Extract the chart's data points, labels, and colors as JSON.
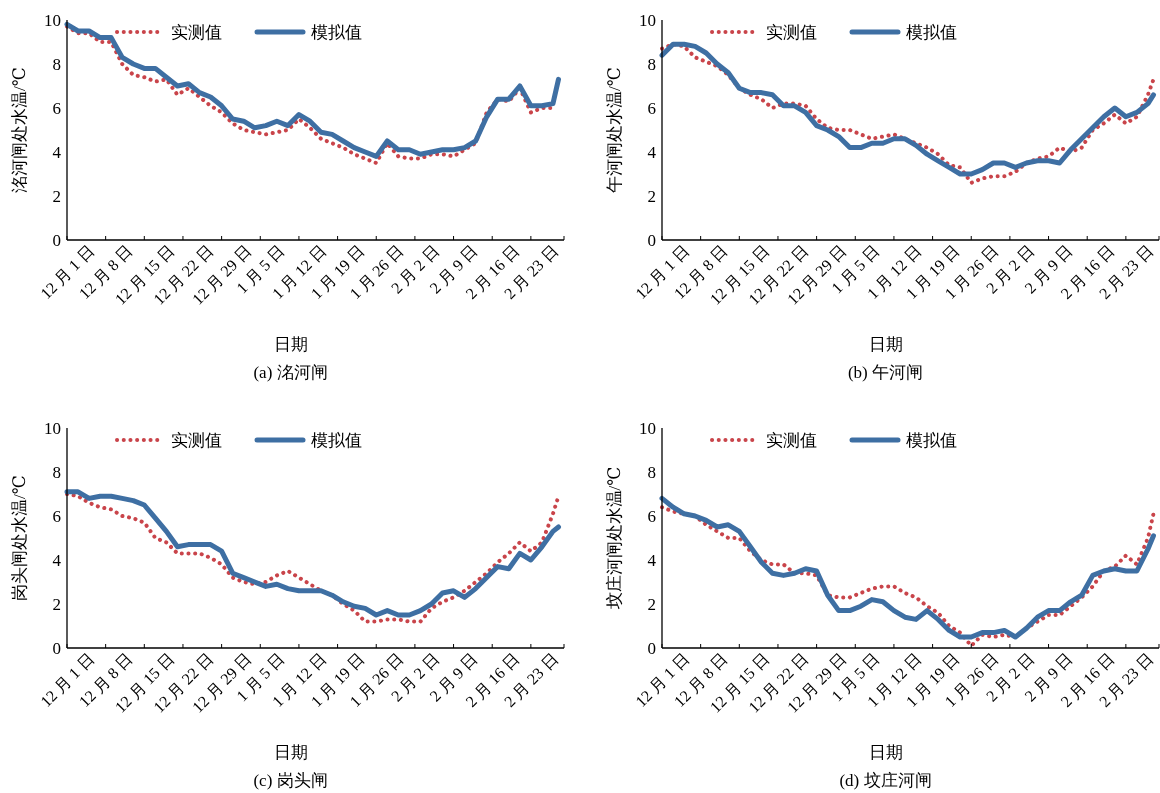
{
  "chart_data": [
    {
      "type": "line",
      "xlabel": "日期",
      "ylabel": "洺河闸处水温/℃",
      "annotations": [
        "(a) 洺河闸"
      ],
      "legend": "top left",
      "ylim": [
        0,
        10
      ],
      "yticks": [
        0,
        2,
        4,
        6,
        8,
        10
      ],
      "categories": [
        "12 月 1 日",
        null,
        null,
        null,
        null,
        null,
        null,
        "12 月 8 日",
        null,
        null,
        null,
        null,
        null,
        null,
        "12 月 15 日",
        null,
        null,
        null,
        null,
        null,
        null,
        "12 月 22 日",
        null,
        null,
        null,
        null,
        null,
        null,
        "12 月 29 日",
        null,
        null,
        null,
        null,
        null,
        null,
        "1 月 5 日",
        null,
        null,
        null,
        null,
        null,
        null,
        "1 月 12 日",
        null,
        null,
        null,
        null,
        null,
        null,
        "1 月 19 日",
        null,
        null,
        null,
        null,
        null,
        null,
        "1 月 26 日",
        null,
        null,
        null,
        null,
        null,
        null,
        "2 月 2 日",
        null,
        null,
        null,
        null,
        null,
        null,
        "2 月 9 日",
        null,
        null,
        null,
        null,
        null,
        null,
        "2 月 16 日",
        null,
        null,
        null,
        null,
        null,
        null,
        "2 月 23 日",
        null,
        null,
        null,
        null,
        null
      ],
      "series": [
        {
          "name": "实测值",
          "color": "#c9444a",
          "line_style": "dotted",
          "values": [
            9.7,
            null,
            9.4,
            null,
            9.4,
            null,
            9.0,
            null,
            9.0,
            null,
            8.0,
            null,
            7.5,
            null,
            7.4,
            null,
            7.2,
            null,
            7.3,
            null,
            6.6,
            null,
            6.9,
            null,
            6.5,
            null,
            6.1,
            null,
            5.8,
            null,
            5.3,
            null,
            5.0,
            null,
            4.9,
            null,
            4.8,
            null,
            4.9,
            null,
            5.0,
            null,
            5.5,
            null,
            5.1,
            null,
            4.6,
            null,
            4.4,
            null,
            4.2,
            null,
            3.9,
            null,
            3.7,
            null,
            3.5,
            null,
            4.4,
            null,
            3.8,
            null,
            3.7,
            null,
            3.7,
            null,
            3.9,
            null,
            3.9,
            null,
            3.8,
            null,
            4.1,
            null,
            4.4,
            null,
            5.8,
            null,
            6.4,
            null,
            6.3,
            null,
            6.9,
            null,
            5.8,
            null,
            6.0,
            null,
            6.0,
            null
          ]
        },
        {
          "name": "模拟值",
          "color": "#3e6fa3",
          "line_style": "solid",
          "values": [
            9.8,
            null,
            9.5,
            null,
            9.5,
            null,
            9.2,
            null,
            9.2,
            null,
            8.3,
            null,
            8.0,
            null,
            7.8,
            null,
            7.8,
            null,
            7.4,
            null,
            7.0,
            null,
            7.1,
            null,
            6.7,
            null,
            6.5,
            null,
            6.1,
            null,
            5.5,
            null,
            5.4,
            null,
            5.1,
            null,
            5.2,
            null,
            5.4,
            null,
            5.2,
            null,
            5.7,
            null,
            5.4,
            null,
            4.9,
            null,
            4.8,
            null,
            4.5,
            null,
            4.2,
            null,
            4.0,
            null,
            3.8,
            null,
            4.5,
            null,
            4.1,
            null,
            4.1,
            null,
            3.9,
            null,
            4.0,
            null,
            4.1,
            null,
            4.1,
            null,
            4.2,
            null,
            4.5,
            null,
            5.6,
            null,
            6.4,
            null,
            6.4,
            null,
            7.0,
            null,
            6.1,
            null,
            6.1,
            null,
            6.2,
            7.3
          ]
        }
      ]
    },
    {
      "type": "line",
      "xlabel": "日期",
      "ylabel": "午河闸处水温/℃",
      "annotations": [
        "(b) 午河闸"
      ],
      "legend": "top left",
      "ylim": [
        0,
        10
      ],
      "yticks": [
        0,
        2,
        4,
        6,
        8,
        10
      ],
      "categories": [
        "12 月 1 日",
        null,
        null,
        null,
        null,
        null,
        null,
        "12 月 8 日",
        null,
        null,
        null,
        null,
        null,
        null,
        "12 月 15 日",
        null,
        null,
        null,
        null,
        null,
        null,
        "12 月 22 日",
        null,
        null,
        null,
        null,
        null,
        null,
        "12 月 29 日",
        null,
        null,
        null,
        null,
        null,
        null,
        "1 月 5 日",
        null,
        null,
        null,
        null,
        null,
        null,
        "1 月 12 日",
        null,
        null,
        null,
        null,
        null,
        null,
        "1 月 19 日",
        null,
        null,
        null,
        null,
        null,
        null,
        "1 月 26 日",
        null,
        null,
        null,
        null,
        null,
        null,
        "2 月 2 日",
        null,
        null,
        null,
        null,
        null,
        null,
        "2 月 9 日",
        null,
        null,
        null,
        null,
        null,
        null,
        "2 月 16 日",
        null,
        null,
        null,
        null,
        null,
        null,
        "2 月 23 日",
        null,
        null,
        null,
        null,
        null
      ],
      "series": [
        {
          "name": "实测值",
          "color": "#c9444a",
          "line_style": "dotted",
          "values": [
            8.7,
            null,
            8.9,
            null,
            8.8,
            null,
            8.3,
            null,
            8.1,
            null,
            7.9,
            null,
            7.5,
            null,
            6.9,
            null,
            6.6,
            null,
            6.4,
            null,
            6.0,
            null,
            6.2,
            null,
            6.2,
            null,
            6.1,
            null,
            5.5,
            null,
            5.1,
            null,
            5.0,
            null,
            5.0,
            null,
            4.8,
            null,
            4.6,
            null,
            4.7,
            null,
            4.8,
            null,
            4.6,
            null,
            4.4,
            null,
            4.2,
            null,
            3.9,
            null,
            3.4,
            null,
            3.3,
            null,
            2.6,
            null,
            2.8,
            null,
            2.9,
            null,
            2.9,
            null,
            3.1,
            null,
            3.5,
            null,
            3.7,
            null,
            3.8,
            null,
            4.2,
            null,
            4.0,
            null,
            4.2,
            null,
            5.0,
            null,
            5.3,
            null,
            5.7,
            null,
            5.3,
            null,
            5.6,
            null,
            6.6,
            7.3
          ]
        },
        {
          "name": "模拟值",
          "color": "#3e6fa3",
          "line_style": "solid",
          "values": [
            8.4,
            null,
            8.9,
            null,
            8.9,
            null,
            8.8,
            null,
            8.5,
            null,
            8.0,
            null,
            7.6,
            null,
            6.9,
            null,
            6.7,
            null,
            6.7,
            null,
            6.6,
            null,
            6.1,
            null,
            6.1,
            null,
            5.8,
            null,
            5.2,
            null,
            5.0,
            null,
            4.7,
            null,
            4.2,
            null,
            4.2,
            null,
            4.4,
            null,
            4.4,
            null,
            4.6,
            null,
            4.6,
            null,
            4.3,
            null,
            3.9,
            null,
            3.6,
            null,
            3.3,
            null,
            3.0,
            null,
            3.0,
            null,
            3.2,
            null,
            3.5,
            null,
            3.5,
            null,
            3.3,
            null,
            3.5,
            null,
            3.6,
            null,
            3.6,
            null,
            3.5,
            null,
            4.1,
            null,
            4.6,
            null,
            5.1,
            null,
            5.6,
            null,
            6.0,
            null,
            5.6,
            null,
            5.8,
            null,
            6.2,
            6.6
          ]
        }
      ]
    },
    {
      "type": "line",
      "xlabel": "日期",
      "ylabel": "岗头闸处水温/℃",
      "annotations": [
        "(c) 岗头闸"
      ],
      "legend": "top left",
      "ylim": [
        0,
        10
      ],
      "yticks": [
        0,
        2,
        4,
        6,
        8,
        10
      ],
      "categories": [
        "12 月 1 日",
        null,
        null,
        null,
        null,
        null,
        null,
        "12 月 8 日",
        null,
        null,
        null,
        null,
        null,
        null,
        "12 月 15 日",
        null,
        null,
        null,
        null,
        null,
        null,
        "12 月 22 日",
        null,
        null,
        null,
        null,
        null,
        null,
        "12 月 29 日",
        null,
        null,
        null,
        null,
        null,
        null,
        "1 月 5 日",
        null,
        null,
        null,
        null,
        null,
        null,
        "1 月 12 日",
        null,
        null,
        null,
        null,
        null,
        null,
        "1 月 19 日",
        null,
        null,
        null,
        null,
        null,
        null,
        "1 月 26 日",
        null,
        null,
        null,
        null,
        null,
        null,
        "2 月 2 日",
        null,
        null,
        null,
        null,
        null,
        null,
        "2 月 9 日",
        null,
        null,
        null,
        null,
        null,
        null,
        "2 月 16 日",
        null,
        null,
        null,
        null,
        null,
        null,
        "2 月 23 日",
        null,
        null,
        null,
        null,
        null
      ],
      "series": [
        {
          "name": "实测值",
          "color": "#c9444a",
          "line_style": "dotted",
          "values": [
            7.0,
            null,
            6.9,
            null,
            6.6,
            null,
            6.4,
            null,
            6.3,
            null,
            6.0,
            null,
            5.9,
            null,
            5.7,
            null,
            5.0,
            null,
            4.8,
            null,
            4.3,
            null,
            4.3,
            null,
            4.3,
            null,
            4.1,
            null,
            3.8,
            null,
            3.2,
            null,
            3.0,
            null,
            2.9,
            null,
            3.0,
            null,
            3.3,
            null,
            3.5,
            null,
            3.2,
            null,
            2.9,
            null,
            2.6,
            null,
            2.4,
            null,
            2.0,
            null,
            1.7,
            null,
            1.2,
            null,
            1.2,
            null,
            1.3,
            null,
            1.3,
            null,
            1.2,
            null,
            1.2,
            null,
            1.8,
            null,
            2.1,
            null,
            2.3,
            null,
            2.6,
            null,
            3.0,
            null,
            3.4,
            null,
            3.9,
            null,
            4.3,
            null,
            4.8,
            null,
            4.4,
            null,
            4.8,
            null,
            6.1,
            6.9
          ]
        },
        {
          "name": "模拟值",
          "color": "#3e6fa3",
          "line_style": "solid",
          "values": [
            7.1,
            null,
            7.1,
            null,
            6.8,
            null,
            6.9,
            null,
            6.9,
            null,
            6.8,
            null,
            6.7,
            null,
            6.5,
            null,
            5.9,
            null,
            5.3,
            null,
            4.6,
            null,
            4.7,
            null,
            4.7,
            null,
            4.7,
            null,
            4.4,
            null,
            3.4,
            null,
            3.2,
            null,
            3.0,
            null,
            2.8,
            null,
            2.9,
            null,
            2.7,
            null,
            2.6,
            null,
            2.6,
            null,
            2.6,
            null,
            2.4,
            null,
            2.1,
            null,
            1.9,
            null,
            1.8,
            null,
            1.5,
            null,
            1.7,
            null,
            1.5,
            null,
            1.5,
            null,
            1.7,
            null,
            2.0,
            null,
            2.5,
            null,
            2.6,
            null,
            2.3,
            null,
            2.7,
            null,
            3.2,
            null,
            3.7,
            null,
            3.6,
            null,
            4.3,
            null,
            4.0,
            null,
            4.6,
            null,
            5.3,
            5.5
          ]
        }
      ]
    },
    {
      "type": "line",
      "xlabel": "日期",
      "ylabel": "坟庄河闸处水温/℃",
      "annotations": [
        "(d) 坟庄河闸"
      ],
      "legend": "top left",
      "ylim": [
        0,
        10
      ],
      "yticks": [
        0,
        2,
        4,
        6,
        8,
        10
      ],
      "categories": [
        "12 月 1 日",
        null,
        null,
        null,
        null,
        null,
        null,
        "12 月 8 日",
        null,
        null,
        null,
        null,
        null,
        null,
        "12 月 15 日",
        null,
        null,
        null,
        null,
        null,
        null,
        "12 月 22 日",
        null,
        null,
        null,
        null,
        null,
        null,
        "12 月 29 日",
        null,
        null,
        null,
        null,
        null,
        null,
        "1 月 5 日",
        null,
        null,
        null,
        null,
        null,
        null,
        "1 月 12 日",
        null,
        null,
        null,
        null,
        null,
        null,
        "1 月 19 日",
        null,
        null,
        null,
        null,
        null,
        null,
        "1 月 26 日",
        null,
        null,
        null,
        null,
        null,
        null,
        "2 月 2 日",
        null,
        null,
        null,
        null,
        null,
        null,
        "2 月 9 日",
        null,
        null,
        null,
        null,
        null,
        null,
        "2 月 16 日",
        null,
        null,
        null,
        null,
        null,
        null,
        "2 月 23 日",
        null,
        null,
        null,
        null,
        null
      ],
      "series": [
        {
          "name": "实测值",
          "color": "#c9444a",
          "line_style": "dotted",
          "values": [
            6.4,
            null,
            6.2,
            null,
            6.1,
            null,
            6.0,
            null,
            5.6,
            null,
            5.3,
            null,
            5.0,
            null,
            5.0,
            null,
            4.4,
            null,
            4.0,
            null,
            3.8,
            null,
            3.8,
            null,
            3.4,
            null,
            3.4,
            null,
            3.3,
            null,
            2.4,
            null,
            2.3,
            null,
            2.3,
            null,
            2.5,
            null,
            2.7,
            null,
            2.8,
            null,
            2.8,
            null,
            2.5,
            null,
            2.3,
            null,
            1.9,
            null,
            1.6,
            null,
            1.0,
            null,
            0.7,
            null,
            0.1,
            null,
            0.6,
            null,
            0.5,
            null,
            0.6,
            null,
            0.5,
            null,
            0.9,
            null,
            1.2,
            null,
            1.5,
            null,
            1.5,
            null,
            1.9,
            null,
            2.3,
            null,
            2.8,
            null,
            3.5,
            null,
            3.7,
            null,
            4.2,
            null,
            3.8,
            null,
            5.0,
            6.1
          ]
        },
        {
          "name": "模拟值",
          "color": "#3e6fa3",
          "line_style": "solid",
          "values": [
            6.8,
            null,
            6.4,
            null,
            6.1,
            null,
            6.0,
            null,
            5.8,
            null,
            5.5,
            null,
            5.6,
            null,
            5.3,
            null,
            4.6,
            null,
            3.9,
            null,
            3.4,
            null,
            3.3,
            null,
            3.4,
            null,
            3.6,
            null,
            3.5,
            null,
            2.4,
            null,
            1.7,
            null,
            1.7,
            null,
            1.9,
            null,
            2.2,
            null,
            2.1,
            null,
            1.7,
            null,
            1.4,
            null,
            1.3,
            null,
            1.7,
            null,
            1.3,
            null,
            0.8,
            null,
            0.5,
            null,
            0.5,
            null,
            0.7,
            null,
            0.7,
            null,
            0.8,
            null,
            0.5,
            null,
            0.9,
            null,
            1.4,
            null,
            1.7,
            null,
            1.7,
            null,
            2.1,
            null,
            2.4,
            null,
            3.3,
            null,
            3.5,
            null,
            3.6,
            null,
            3.5,
            null,
            3.5,
            null,
            4.5,
            5.1
          ]
        }
      ]
    }
  ]
}
